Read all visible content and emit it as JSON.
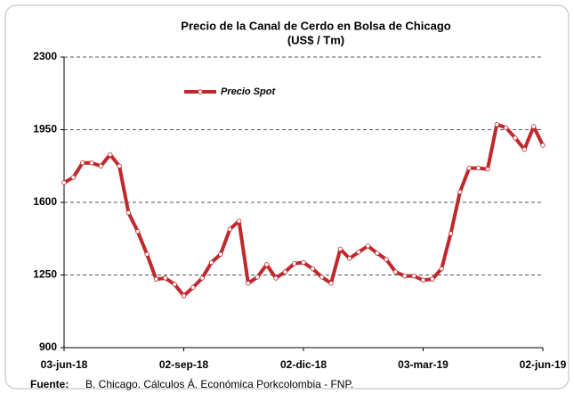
{
  "chart_data": {
    "type": "line",
    "title": "Precio de la Canal de Cerdo en Bolsa de Chicago",
    "subtitle": "(US$ / Tm)",
    "categories": [
      "03-jun-18",
      null,
      null,
      null,
      null,
      null,
      null,
      null,
      null,
      null,
      null,
      null,
      null,
      "02-sep-18",
      null,
      null,
      null,
      null,
      null,
      null,
      null,
      null,
      null,
      null,
      null,
      null,
      "02-dic-18",
      null,
      null,
      null,
      null,
      null,
      null,
      null,
      null,
      null,
      null,
      null,
      null,
      "03-mar-19",
      null,
      null,
      null,
      null,
      null,
      null,
      null,
      null,
      null,
      null,
      null,
      null,
      "02-jun-19"
    ],
    "series": [
      {
        "name": "Precio Spot",
        "color": "#c0282d",
        "values": [
          1695,
          1720,
          1790,
          1790,
          1775,
          1830,
          1775,
          1550,
          1460,
          1350,
          1230,
          1235,
          1205,
          1150,
          1190,
          1235,
          1310,
          1350,
          1470,
          1510,
          1210,
          1240,
          1300,
          1235,
          1265,
          1305,
          1310,
          1280,
          1240,
          1210,
          1375,
          1330,
          1360,
          1390,
          1355,
          1325,
          1265,
          1245,
          1245,
          1225,
          1230,
          1280,
          1450,
          1650,
          1765,
          1765,
          1760,
          1975,
          1960,
          1910,
          1855,
          1965,
          1875
        ]
      }
    ],
    "ylim": [
      900,
      2300
    ],
    "yticks": [
      900,
      1250,
      1600,
      1950,
      2300
    ],
    "grid": true,
    "footnote": {
      "label": "Fuente:",
      "text": "B. Chicago. Cálculos Á. Económica Porkcolombia - FNP."
    }
  }
}
